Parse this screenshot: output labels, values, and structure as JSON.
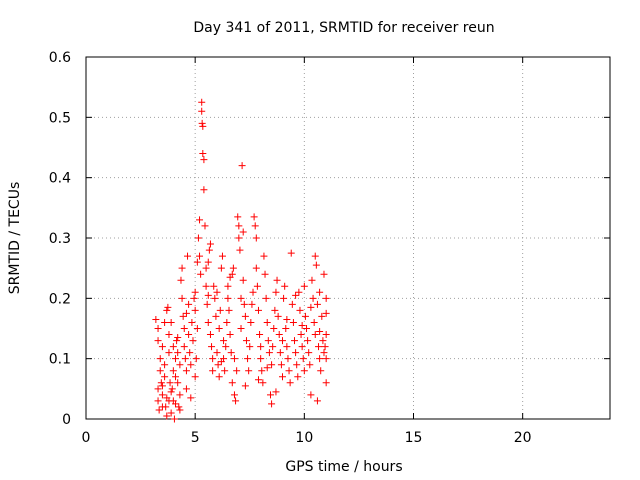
{
  "chart_data": {
    "type": "scatter",
    "title": "Day 341 of 2011, SRMTID for receiver reun",
    "xlabel": "GPS time / hours",
    "ylabel": "SRMTID / TECUs",
    "xlim": [
      0,
      24
    ],
    "ylim": [
      0,
      0.6
    ],
    "xticks": [
      "0",
      "5",
      "10",
      "15",
      "20"
    ],
    "yticks": [
      "0",
      "0.1",
      "0.2",
      "0.3",
      "0.4",
      "0.5",
      "0.6"
    ],
    "grid": true,
    "marker": "+",
    "color": "#ff0000",
    "series": [
      {
        "name": "reun",
        "points": [
          [
            3.2,
            0.165
          ],
          [
            3.3,
            0.15
          ],
          [
            3.3,
            0.13
          ],
          [
            3.3,
            0.05
          ],
          [
            3.3,
            0.03
          ],
          [
            3.35,
            0.015
          ],
          [
            3.4,
            0.08
          ],
          [
            3.4,
            0.1
          ],
          [
            3.45,
            0.06
          ],
          [
            3.5,
            0.02
          ],
          [
            3.5,
            0.04
          ],
          [
            3.5,
            0.12
          ],
          [
            3.6,
            0.16
          ],
          [
            3.6,
            0.09
          ],
          [
            3.6,
            0.07
          ],
          [
            3.65,
            0.02
          ],
          [
            3.7,
            0.005
          ],
          [
            3.7,
            0.18
          ],
          [
            3.75,
            0.185
          ],
          [
            3.8,
            0.14
          ],
          [
            3.8,
            0.11
          ],
          [
            3.8,
            0.03
          ],
          [
            3.85,
            0.06
          ],
          [
            3.9,
            0.16
          ],
          [
            3.9,
            0.01
          ],
          [
            3.95,
            0.05
          ],
          [
            4.0,
            0.12
          ],
          [
            4.0,
            0.08
          ],
          [
            4.0,
            0.03
          ],
          [
            4.05,
            0.0
          ],
          [
            4.1,
            0.1
          ],
          [
            4.1,
            0.07
          ],
          [
            4.15,
            0.13
          ],
          [
            4.2,
            0.11
          ],
          [
            4.2,
            0.06
          ],
          [
            4.25,
            0.02
          ],
          [
            4.3,
            0.09
          ],
          [
            4.3,
            0.04
          ],
          [
            4.35,
            0.23
          ],
          [
            4.4,
            0.25
          ],
          [
            4.4,
            0.2
          ],
          [
            4.45,
            0.17
          ],
          [
            4.5,
            0.15
          ],
          [
            4.5,
            0.12
          ],
          [
            4.55,
            0.1
          ],
          [
            4.6,
            0.08
          ],
          [
            4.6,
            0.05
          ],
          [
            4.65,
            0.27
          ],
          [
            4.7,
            0.19
          ],
          [
            4.7,
            0.14
          ],
          [
            4.75,
            0.11
          ],
          [
            4.8,
            0.09
          ],
          [
            4.8,
            0.035
          ],
          [
            4.85,
            0.16
          ],
          [
            4.9,
            0.13
          ],
          [
            4.95,
            0.2
          ],
          [
            5.0,
            0.21
          ],
          [
            5.0,
            0.18
          ],
          [
            5.0,
            0.07
          ],
          [
            5.05,
            0.1
          ],
          [
            5.1,
            0.15
          ],
          [
            5.1,
            0.26
          ],
          [
            5.15,
            0.3
          ],
          [
            5.2,
            0.33
          ],
          [
            5.2,
            0.27
          ],
          [
            5.25,
            0.24
          ],
          [
            5.3,
            0.525
          ],
          [
            5.3,
            0.51
          ],
          [
            5.32,
            0.49
          ],
          [
            5.35,
            0.485
          ],
          [
            5.35,
            0.44
          ],
          [
            5.4,
            0.43
          ],
          [
            5.4,
            0.38
          ],
          [
            5.45,
            0.32
          ],
          [
            5.5,
            0.25
          ],
          [
            5.5,
            0.22
          ],
          [
            5.55,
            0.19
          ],
          [
            5.6,
            0.16
          ],
          [
            5.6,
            0.26
          ],
          [
            5.65,
            0.28
          ],
          [
            5.7,
            0.29
          ],
          [
            5.7,
            0.14
          ],
          [
            5.75,
            0.12
          ],
          [
            5.8,
            0.1
          ],
          [
            5.8,
            0.08
          ],
          [
            5.85,
            0.22
          ],
          [
            5.9,
            0.2
          ],
          [
            5.95,
            0.17
          ],
          [
            6.0,
            0.21
          ],
          [
            6.0,
            0.11
          ],
          [
            6.05,
            0.09
          ],
          [
            6.1,
            0.07
          ],
          [
            6.1,
            0.15
          ],
          [
            6.15,
            0.18
          ],
          [
            6.2,
            0.25
          ],
          [
            6.25,
            0.27
          ],
          [
            6.3,
            0.13
          ],
          [
            6.3,
            0.1
          ],
          [
            6.35,
            0.08
          ],
          [
            6.4,
            0.12
          ],
          [
            6.45,
            0.16
          ],
          [
            6.5,
            0.2
          ],
          [
            6.5,
            0.22
          ],
          [
            6.55,
            0.18
          ],
          [
            6.6,
            0.14
          ],
          [
            6.65,
            0.11
          ],
          [
            6.7,
            0.06
          ],
          [
            6.7,
            0.24
          ],
          [
            6.75,
            0.25
          ],
          [
            6.8,
            0.1
          ],
          [
            6.8,
            0.04
          ],
          [
            6.85,
            0.03
          ],
          [
            6.9,
            0.08
          ],
          [
            6.95,
            0.335
          ],
          [
            7.0,
            0.32
          ],
          [
            7.0,
            0.3
          ],
          [
            7.05,
            0.28
          ],
          [
            7.1,
            0.2
          ],
          [
            7.1,
            0.15
          ],
          [
            7.15,
            0.42
          ],
          [
            7.2,
            0.31
          ],
          [
            7.2,
            0.23
          ],
          [
            7.25,
            0.19
          ],
          [
            7.3,
            0.17
          ],
          [
            7.35,
            0.13
          ],
          [
            7.4,
            0.1
          ],
          [
            7.45,
            0.08
          ],
          [
            7.5,
            0.12
          ],
          [
            7.55,
            0.16
          ],
          [
            7.6,
            0.19
          ],
          [
            7.65,
            0.21
          ],
          [
            7.7,
            0.335
          ],
          [
            7.75,
            0.32
          ],
          [
            7.8,
            0.3
          ],
          [
            7.8,
            0.25
          ],
          [
            7.85,
            0.22
          ],
          [
            7.9,
            0.18
          ],
          [
            7.95,
            0.14
          ],
          [
            8.0,
            0.12
          ],
          [
            8.0,
            0.1
          ],
          [
            8.05,
            0.08
          ],
          [
            8.1,
            0.06
          ],
          [
            8.15,
            0.27
          ],
          [
            8.2,
            0.24
          ],
          [
            8.25,
            0.2
          ],
          [
            8.3,
            0.16
          ],
          [
            8.35,
            0.13
          ],
          [
            8.4,
            0.11
          ],
          [
            8.45,
            0.04
          ],
          [
            8.5,
            0.025
          ],
          [
            8.5,
            0.09
          ],
          [
            8.55,
            0.12
          ],
          [
            8.6,
            0.15
          ],
          [
            8.65,
            0.18
          ],
          [
            8.7,
            0.21
          ],
          [
            8.75,
            0.23
          ],
          [
            8.8,
            0.17
          ],
          [
            8.85,
            0.14
          ],
          [
            8.9,
            0.11
          ],
          [
            8.95,
            0.09
          ],
          [
            9.0,
            0.07
          ],
          [
            9.0,
            0.13
          ],
          [
            9.05,
            0.2
          ],
          [
            9.1,
            0.22
          ],
          [
            9.15,
            0.15
          ],
          [
            9.2,
            0.12
          ],
          [
            9.25,
            0.1
          ],
          [
            9.3,
            0.08
          ],
          [
            9.35,
            0.06
          ],
          [
            9.4,
            0.275
          ],
          [
            9.45,
            0.19
          ],
          [
            9.5,
            0.16
          ],
          [
            9.55,
            0.13
          ],
          [
            9.6,
            0.11
          ],
          [
            9.65,
            0.09
          ],
          [
            9.7,
            0.07
          ],
          [
            9.75,
            0.21
          ],
          [
            9.8,
            0.18
          ],
          [
            9.85,
            0.14
          ],
          [
            9.9,
            0.12
          ],
          [
            9.95,
            0.1
          ],
          [
            10.0,
            0.08
          ],
          [
            10.0,
            0.22
          ],
          [
            10.05,
            0.17
          ],
          [
            10.1,
            0.15
          ],
          [
            10.15,
            0.13
          ],
          [
            10.2,
            0.11
          ],
          [
            10.25,
            0.09
          ],
          [
            10.3,
            0.04
          ],
          [
            10.35,
            0.23
          ],
          [
            10.4,
            0.2
          ],
          [
            10.45,
            0.16
          ],
          [
            10.5,
            0.14
          ],
          [
            10.5,
            0.27
          ],
          [
            10.55,
            0.255
          ],
          [
            10.6,
            0.19
          ],
          [
            10.65,
            0.12
          ],
          [
            10.7,
            0.1
          ],
          [
            10.75,
            0.08
          ],
          [
            10.8,
            0.17
          ],
          [
            10.85,
            0.13
          ],
          [
            10.9,
            0.11
          ],
          [
            10.95,
            0.12
          ],
          [
            11.0,
            0.2
          ],
          [
            11.0,
            0.14
          ],
          [
            11.0,
            0.1
          ],
          [
            11.0,
            0.06
          ],
          [
            10.9,
            0.24
          ],
          [
            10.7,
            0.21
          ],
          [
            10.6,
            0.03
          ],
          [
            3.5,
            0.055
          ],
          [
            3.7,
            0.035
          ],
          [
            3.9,
            0.045
          ],
          [
            4.1,
            0.025
          ],
          [
            4.3,
            0.015
          ],
          [
            4.2,
            0.135
          ],
          [
            4.6,
            0.175
          ],
          [
            5.6,
            0.205
          ],
          [
            6.2,
            0.095
          ],
          [
            6.6,
            0.235
          ],
          [
            7.3,
            0.055
          ],
          [
            7.9,
            0.065
          ],
          [
            8.3,
            0.085
          ],
          [
            8.7,
            0.045
          ],
          [
            9.2,
            0.165
          ],
          [
            9.6,
            0.205
          ],
          [
            9.9,
            0.155
          ],
          [
            10.3,
            0.185
          ],
          [
            10.7,
            0.145
          ],
          [
            11.0,
            0.175
          ]
        ]
      }
    ]
  }
}
